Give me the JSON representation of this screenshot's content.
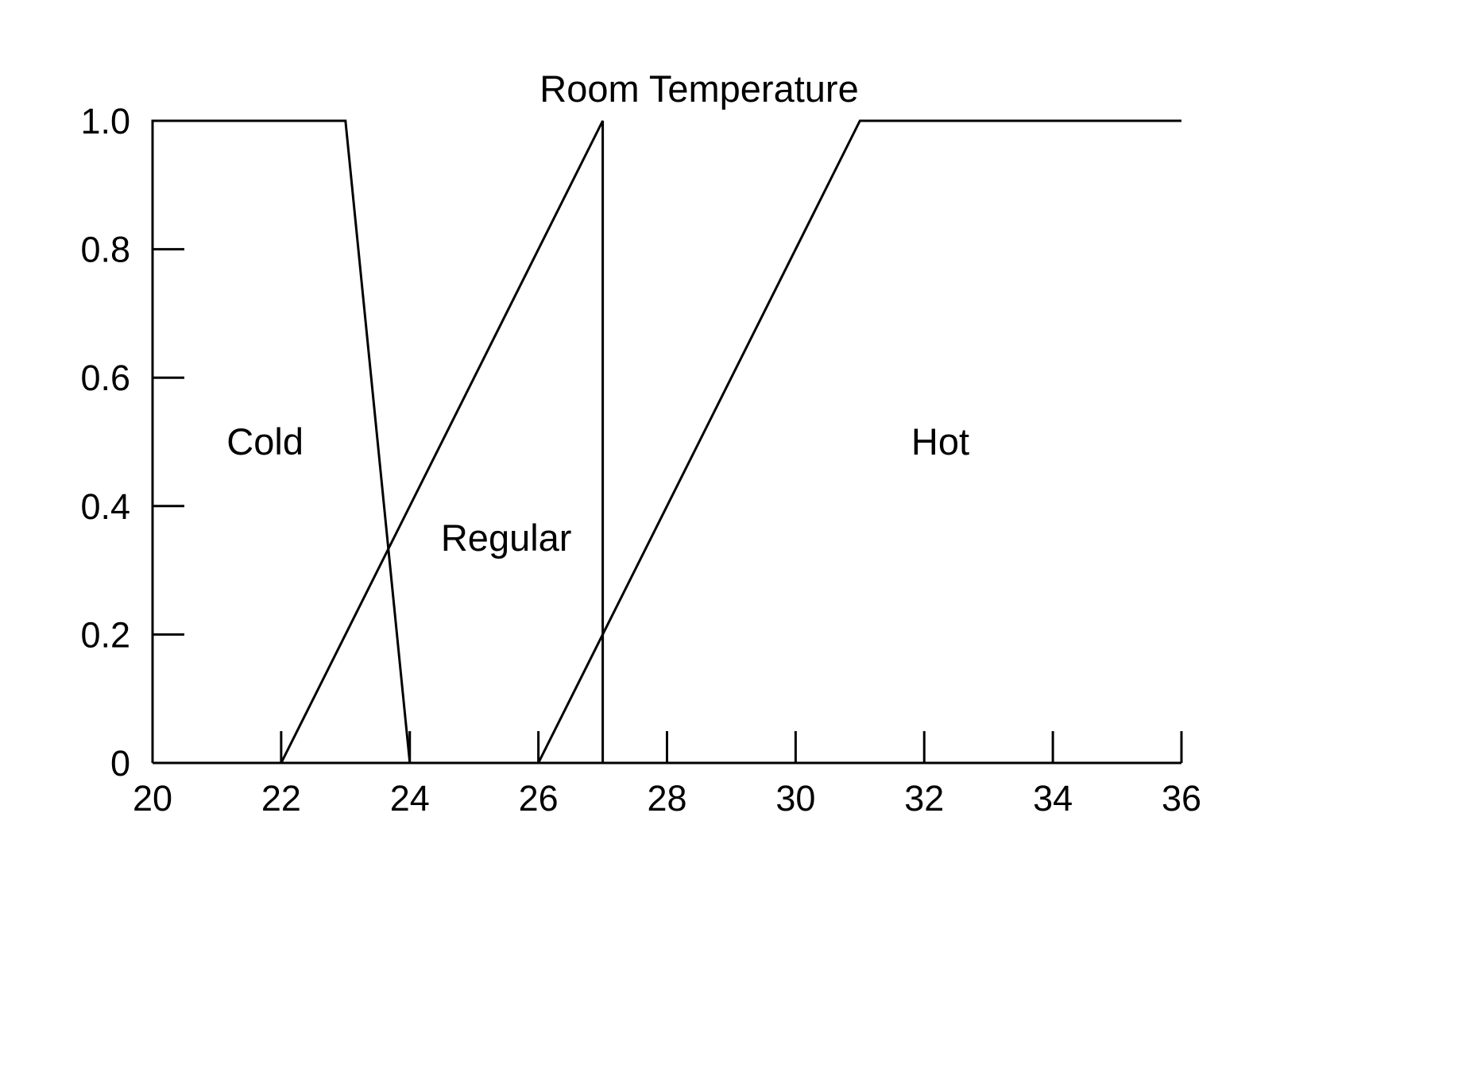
{
  "chart_data": {
    "type": "line",
    "title": "Room Temperature",
    "xlabel": "",
    "ylabel": "",
    "xlim": [
      20,
      36
    ],
    "ylim": [
      0,
      1.0
    ],
    "grid": false,
    "legend": "none",
    "x_ticks": [
      20,
      22,
      24,
      26,
      28,
      30,
      32,
      34,
      36
    ],
    "x_tick_labels": [
      "20",
      "22",
      "24",
      "26",
      "28",
      "30",
      "32",
      "34",
      "36"
    ],
    "y_ticks": [
      0,
      0.2,
      0.4,
      0.6,
      0.8,
      1.0
    ],
    "y_tick_labels": [
      "0",
      "0.2",
      "0.4",
      "0.6",
      "0.8",
      "1.0"
    ],
    "series": [
      {
        "name": "Cold",
        "x": [
          20,
          20,
          23,
          24
        ],
        "y": [
          0,
          1.0,
          1.0,
          0
        ]
      },
      {
        "name": "Regular",
        "x": [
          22,
          27,
          27
        ],
        "y": [
          0,
          1.0,
          0
        ]
      },
      {
        "name": "Hot",
        "x": [
          26,
          31,
          36
        ],
        "y": [
          0,
          1.0,
          1.0
        ]
      }
    ],
    "annotations": [
      {
        "text": "Cold",
        "x": 21.75,
        "y": 0.5
      },
      {
        "text": "Regular",
        "x": 25.5,
        "y": 0.35
      },
      {
        "text": "Hot",
        "x": 32.25,
        "y": 0.5
      }
    ],
    "line_color": "#000000"
  }
}
